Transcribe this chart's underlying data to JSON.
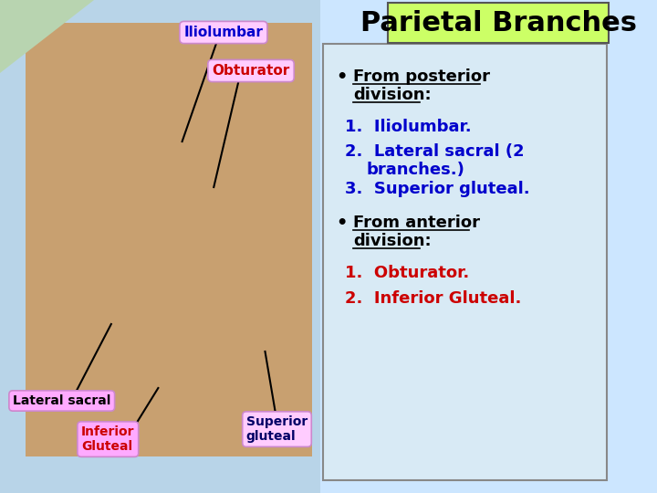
{
  "title": "Parietal Branches",
  "title_bg": "#ccff66",
  "title_color": "#000000",
  "title_fontsize": 22,
  "slide_bg": "#cce6ff",
  "right_panel_bg": "#d8eaf5",
  "right_panel_border": "#888888",
  "bullet1_color": "#000000",
  "items_posterior_color": "#0000cc",
  "bullet2_color": "#000000",
  "items_anterior_color": "#cc0000",
  "label_iliolumbar_text": "Iliolumbar",
  "label_iliolumbar_color": "#0000cc",
  "label_iliolumbar_bg": "#ffccff",
  "label_obturator_text": "Obturator",
  "label_obturator_color": "#cc0000",
  "label_obturator_bg": "#ffccff",
  "label_lateral_text": "Lateral sacral",
  "label_lateral_color": "#000000",
  "label_lateral_bg": "#ffaaff",
  "label_inferior_text": "Inferior\nGluteal",
  "label_inferior_color": "#cc0000",
  "label_inferior_bg": "#ffaaff",
  "label_superior_text": "Superior\ngluteal",
  "label_superior_color": "#000066",
  "label_superior_bg": "#ffccff",
  "left_panel_bg": "#b8d4e8"
}
